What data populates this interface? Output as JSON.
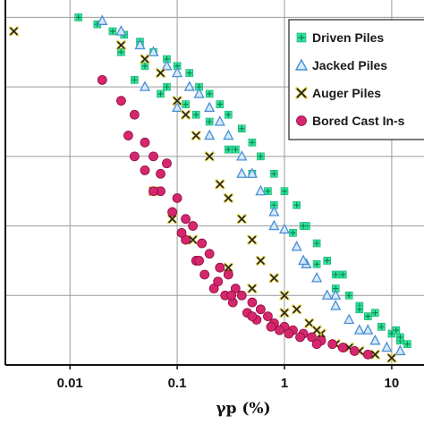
{
  "chart_data": {
    "type": "scatter",
    "title": "",
    "xlabel": "γp (%)",
    "ylabel": "",
    "xscale": "log",
    "xlim": [
      0.0025,
      20
    ],
    "ylim": [
      0,
      1.05
    ],
    "grid": true,
    "legend_position": "top-right",
    "x_ticks": [
      "0.01",
      "0.1",
      "1",
      "10"
    ],
    "series": [
      {
        "name": "Driven Piles",
        "marker": "square-plus",
        "color": "#2ee39a",
        "x": [
          0.012,
          0.018,
          0.025,
          0.032,
          0.045,
          0.06,
          0.08,
          0.1,
          0.13,
          0.16,
          0.2,
          0.25,
          0.3,
          0.4,
          0.5,
          0.6,
          0.8,
          1.0,
          1.3,
          1.6,
          2.0,
          2.5,
          3.0,
          4.0,
          5.0,
          6.0,
          8.0,
          10.0,
          12.0,
          14.0,
          0.03,
          0.05,
          0.08,
          0.12,
          0.2,
          0.3,
          0.5,
          0.8,
          1.2,
          2.0,
          3.0,
          5.0,
          8.0,
          12.0,
          0.04,
          0.07,
          0.15,
          0.35,
          0.7,
          1.5,
          3.5,
          7.0,
          11.0
        ],
        "y": [
          1.0,
          0.98,
          0.96,
          0.95,
          0.93,
          0.9,
          0.88,
          0.86,
          0.84,
          0.8,
          0.78,
          0.75,
          0.72,
          0.68,
          0.64,
          0.6,
          0.55,
          0.5,
          0.46,
          0.4,
          0.35,
          0.3,
          0.26,
          0.2,
          0.17,
          0.14,
          0.11,
          0.09,
          0.07,
          0.06,
          0.9,
          0.86,
          0.8,
          0.75,
          0.7,
          0.62,
          0.55,
          0.46,
          0.38,
          0.29,
          0.22,
          0.16,
          0.11,
          0.08,
          0.82,
          0.78,
          0.72,
          0.62,
          0.5,
          0.4,
          0.26,
          0.15,
          0.1
        ]
      },
      {
        "name": "Jacked Piles",
        "marker": "triangle",
        "color": "#7ab4e6",
        "x": [
          0.02,
          0.03,
          0.045,
          0.06,
          0.08,
          0.1,
          0.13,
          0.16,
          0.2,
          0.25,
          0.3,
          0.4,
          0.5,
          0.6,
          0.8,
          1.0,
          1.3,
          1.6,
          2.0,
          2.5,
          3.0,
          4.0,
          5.0,
          7.0,
          9.0,
          12.0,
          0.05,
          0.1,
          0.2,
          0.4,
          0.8,
          1.5,
          3.0,
          6.0
        ],
        "y": [
          0.99,
          0.96,
          0.92,
          0.9,
          0.86,
          0.84,
          0.8,
          0.78,
          0.74,
          0.7,
          0.66,
          0.6,
          0.55,
          0.5,
          0.44,
          0.39,
          0.34,
          0.29,
          0.25,
          0.2,
          0.17,
          0.13,
          0.1,
          0.07,
          0.05,
          0.04,
          0.8,
          0.74,
          0.66,
          0.55,
          0.4,
          0.3,
          0.2,
          0.1
        ]
      },
      {
        "name": "Auger Piles",
        "marker": "x",
        "color": "#222222",
        "x": [
          0.003,
          0.03,
          0.05,
          0.07,
          0.1,
          0.12,
          0.15,
          0.2,
          0.25,
          0.3,
          0.4,
          0.5,
          0.6,
          0.8,
          1.0,
          1.3,
          1.7,
          2.2,
          3.0,
          4.0,
          5.0,
          7.0,
          10.0,
          0.06,
          0.09,
          0.14,
          0.3,
          0.5,
          1.0,
          2.0
        ],
        "y": [
          0.96,
          0.92,
          0.88,
          0.84,
          0.76,
          0.72,
          0.66,
          0.6,
          0.52,
          0.48,
          0.42,
          0.36,
          0.3,
          0.25,
          0.2,
          0.16,
          0.12,
          0.09,
          0.06,
          0.05,
          0.04,
          0.03,
          0.02,
          0.5,
          0.42,
          0.36,
          0.28,
          0.22,
          0.15,
          0.1
        ]
      },
      {
        "name": "Bored Cast In-s",
        "marker": "circle",
        "color": "#d6266e",
        "x": [
          0.03,
          0.04,
          0.05,
          0.06,
          0.07,
          0.08,
          0.1,
          0.12,
          0.14,
          0.17,
          0.2,
          0.25,
          0.3,
          0.35,
          0.4,
          0.5,
          0.6,
          0.7,
          0.8,
          1.0,
          1.2,
          1.5,
          1.8,
          2.2,
          2.8,
          3.5,
          4.5,
          6.0,
          0.02,
          0.035,
          0.05,
          0.07,
          0.09,
          0.12,
          0.15,
          0.18,
          0.22,
          0.28,
          0.33,
          0.45,
          0.55,
          0.9,
          1.4,
          2.0,
          0.04,
          0.06,
          0.11,
          0.16,
          0.24,
          0.32,
          0.5,
          0.75,
          1.1
        ],
        "y": [
          0.76,
          0.72,
          0.64,
          0.6,
          0.55,
          0.58,
          0.48,
          0.42,
          0.4,
          0.35,
          0.32,
          0.28,
          0.26,
          0.22,
          0.2,
          0.18,
          0.16,
          0.14,
          0.12,
          0.11,
          0.1,
          0.09,
          0.08,
          0.07,
          0.06,
          0.05,
          0.04,
          0.03,
          0.82,
          0.66,
          0.56,
          0.5,
          0.44,
          0.36,
          0.3,
          0.26,
          0.22,
          0.2,
          0.18,
          0.15,
          0.13,
          0.1,
          0.08,
          0.06,
          0.6,
          0.5,
          0.38,
          0.3,
          0.24,
          0.2,
          0.14,
          0.11,
          0.09
        ]
      }
    ]
  }
}
